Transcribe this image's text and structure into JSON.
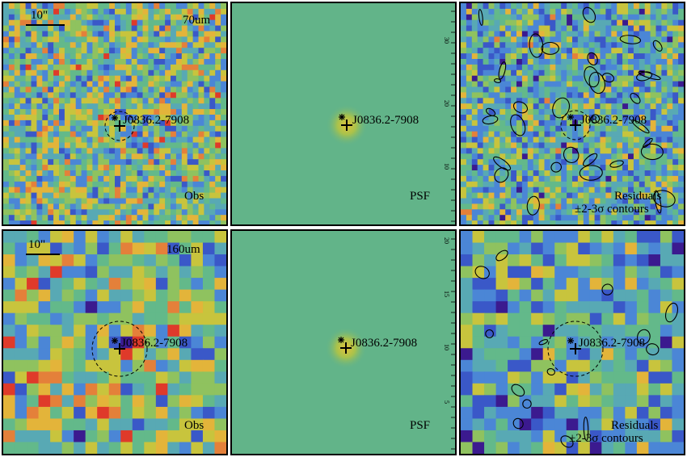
{
  "source_name": "J0836.2-7908",
  "scale_bar_label": "10\"",
  "rows": [
    {
      "band": "70um",
      "panels": [
        {
          "id": "obs",
          "label": "Obs"
        },
        {
          "id": "psf",
          "label": "PSF",
          "axis_ticks": [
            "30",
            "20",
            "10"
          ]
        },
        {
          "id": "res",
          "label_line1": "Residuals",
          "label_line2": "±2-3σ contours"
        }
      ]
    },
    {
      "band": "160um",
      "panels": [
        {
          "id": "obs",
          "label": "Obs"
        },
        {
          "id": "psf",
          "label": "PSF",
          "axis_ticks": [
            "20",
            "15",
            "10",
            "5"
          ]
        },
        {
          "id": "res",
          "label_line1": "Residuals",
          "label_line2": "±2-3σ contours"
        }
      ]
    }
  ],
  "colors": {
    "palette": [
      "#3b1a8f",
      "#3a58c8",
      "#4b86d6",
      "#58a9b4",
      "#63b98a",
      "#8fc25f",
      "#c8c43d",
      "#e3b43a",
      "#e4803a",
      "#df3a2a"
    ],
    "psf_background": "#62b489",
    "psf_core": "#e3c23a",
    "contour": "#000000"
  }
}
